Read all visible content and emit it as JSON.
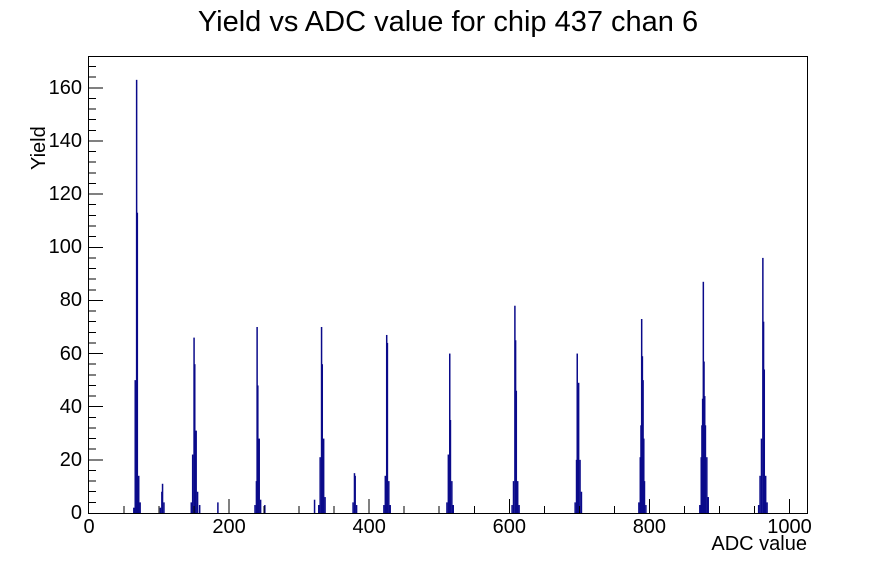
{
  "chart_data": {
    "type": "bar",
    "subtype": "root-histogram-spikes",
    "title": "Yield vs ADC value for chip 437 chan 6",
    "xlabel": "ADC value",
    "ylabel": "Yield",
    "xlim": [
      0,
      1025
    ],
    "ylim": [
      0,
      171.6
    ],
    "grid": false,
    "legend": "none",
    "x_major_ticks": [
      0,
      200,
      400,
      600,
      800,
      1000
    ],
    "y_major_ticks": [
      0,
      20,
      40,
      60,
      80,
      100,
      120,
      140,
      160
    ],
    "x_minor_step": 50,
    "y_minor_step": 4,
    "x_major_step": 200,
    "y_major_step": 20,
    "line_color": "#0a0a8a",
    "axis_color": "#000000",
    "background_color": "#ffffff",
    "bins": [
      [
        64,
        2
      ],
      [
        66,
        50
      ],
      [
        68,
        163
      ],
      [
        69,
        113
      ],
      [
        71,
        14
      ],
      [
        73,
        4
      ],
      [
        102,
        2
      ],
      [
        104,
        8
      ],
      [
        105,
        11
      ],
      [
        107,
        4
      ],
      [
        146,
        4
      ],
      [
        148,
        22
      ],
      [
        150,
        66
      ],
      [
        151,
        56
      ],
      [
        153,
        31
      ],
      [
        155,
        8
      ],
      [
        158,
        3
      ],
      [
        184,
        4
      ],
      [
        237,
        3
      ],
      [
        239,
        12
      ],
      [
        240,
        70
      ],
      [
        241,
        48
      ],
      [
        243,
        28
      ],
      [
        245,
        5
      ],
      [
        251,
        3
      ],
      [
        322,
        5
      ],
      [
        328,
        3
      ],
      [
        330,
        21
      ],
      [
        332,
        70
      ],
      [
        333,
        56
      ],
      [
        335,
        28
      ],
      [
        337,
        6
      ],
      [
        377,
        4
      ],
      [
        379,
        15
      ],
      [
        380,
        14
      ],
      [
        382,
        3
      ],
      [
        421,
        3
      ],
      [
        423,
        14
      ],
      [
        425,
        67
      ],
      [
        426,
        64
      ],
      [
        428,
        12
      ],
      [
        430,
        3
      ],
      [
        511,
        4
      ],
      [
        513,
        22
      ],
      [
        515,
        60
      ],
      [
        516,
        35
      ],
      [
        518,
        12
      ],
      [
        520,
        3
      ],
      [
        604,
        3
      ],
      [
        606,
        12
      ],
      [
        608,
        78
      ],
      [
        609,
        65
      ],
      [
        610,
        46
      ],
      [
        612,
        12
      ],
      [
        614,
        3
      ],
      [
        694,
        4
      ],
      [
        696,
        20
      ],
      [
        697,
        60
      ],
      [
        699,
        49
      ],
      [
        701,
        20
      ],
      [
        703,
        8
      ],
      [
        785,
        4
      ],
      [
        787,
        21
      ],
      [
        788,
        33
      ],
      [
        789,
        73
      ],
      [
        790,
        59
      ],
      [
        791,
        50
      ],
      [
        792,
        28
      ],
      [
        793,
        12
      ],
      [
        795,
        3
      ],
      [
        872,
        3
      ],
      [
        874,
        21
      ],
      [
        875,
        33
      ],
      [
        876,
        43
      ],
      [
        877,
        87
      ],
      [
        878,
        57
      ],
      [
        879,
        44
      ],
      [
        880,
        33
      ],
      [
        882,
        21
      ],
      [
        884,
        6
      ],
      [
        956,
        3
      ],
      [
        958,
        14
      ],
      [
        960,
        28
      ],
      [
        962,
        96
      ],
      [
        963,
        72
      ],
      [
        964,
        54
      ],
      [
        966,
        14
      ],
      [
        968,
        4
      ]
    ]
  }
}
